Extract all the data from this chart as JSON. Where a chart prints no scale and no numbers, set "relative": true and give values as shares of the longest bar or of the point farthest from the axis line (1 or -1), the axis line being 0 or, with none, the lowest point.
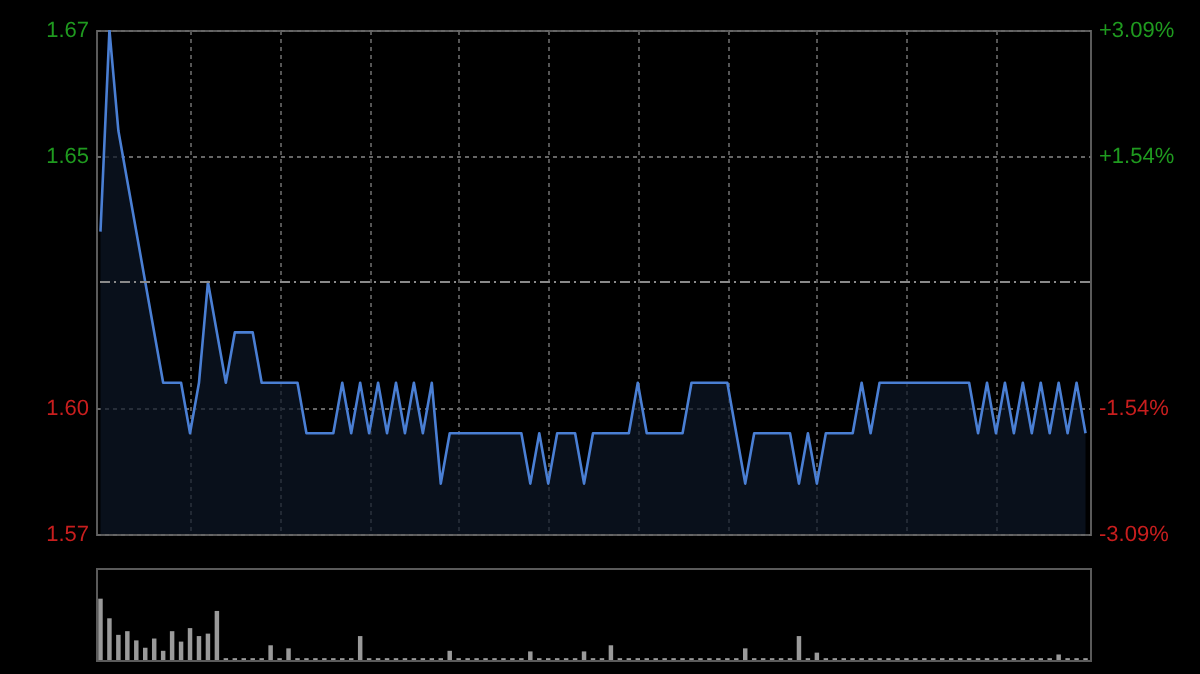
{
  "chart_data": [
    {
      "type": "area",
      "categories": [
        null,
        null,
        null,
        null,
        null,
        null,
        null,
        null,
        null,
        null,
        null,
        null,
        null,
        null,
        null,
        null,
        null,
        null,
        null,
        null,
        null,
        null,
        null,
        null,
        null,
        null,
        null,
        null,
        null,
        null,
        null,
        null,
        null,
        null,
        null,
        null,
        null,
        null,
        null,
        null,
        null,
        null,
        null,
        null,
        null,
        null,
        null,
        null,
        null,
        null,
        null,
        null,
        null,
        null,
        null,
        null,
        null,
        null,
        null,
        null,
        null,
        null,
        null,
        null,
        null,
        null,
        null,
        null,
        null,
        null,
        null,
        null,
        null,
        null,
        null,
        null,
        null,
        null,
        null,
        null,
        null,
        null,
        null,
        null,
        null,
        null,
        null,
        null,
        null,
        null,
        null,
        null,
        null,
        null,
        null,
        null,
        null,
        null,
        null,
        null,
        null,
        null,
        null,
        null,
        null,
        null,
        null,
        null,
        null,
        null,
        null
      ],
      "series": [
        {
          "color": "#4a7fd4",
          "values": [
            1.63,
            1.67,
            1.65,
            1.64,
            1.63,
            1.62,
            1.61,
            1.6,
            1.6,
            1.6,
            1.59,
            1.6,
            1.62,
            1.61,
            1.6,
            1.61,
            1.61,
            1.61,
            1.6,
            1.6,
            1.6,
            1.6,
            1.6,
            1.59,
            1.59,
            1.59,
            1.59,
            1.6,
            1.59,
            1.6,
            1.59,
            1.6,
            1.59,
            1.6,
            1.59,
            1.6,
            1.59,
            1.6,
            1.58,
            1.59,
            1.59,
            1.59,
            1.59,
            1.59,
            1.59,
            1.59,
            1.59,
            1.59,
            1.58,
            1.59,
            1.58,
            1.59,
            1.59,
            1.59,
            1.58,
            1.59,
            1.59,
            1.59,
            1.59,
            1.59,
            1.6,
            1.59,
            1.59,
            1.59,
            1.59,
            1.59,
            1.6,
            1.6,
            1.6,
            1.6,
            1.6,
            1.59,
            1.58,
            1.59,
            1.59,
            1.59,
            1.59,
            1.59,
            1.58,
            1.59,
            1.58,
            1.59,
            1.59,
            1.59,
            1.59,
            1.6,
            1.59,
            1.6,
            1.6,
            1.6,
            1.6,
            1.6,
            1.6,
            1.6,
            1.6,
            1.6,
            1.6,
            1.6,
            1.59,
            1.6,
            1.59,
            1.6,
            1.59,
            1.6,
            1.59,
            1.6,
            1.59,
            1.6,
            1.59,
            1.6,
            1.59
          ]
        }
      ],
      "ylim": [
        1.57,
        1.67
      ],
      "yticks": [
        1.67,
        {
          "value": 1.645,
          "label": "1.65"
        },
        {
          "value": 1.595,
          "label": "1.60"
        },
        1.57
      ],
      "y2lim": [
        -3.09,
        3.09
      ],
      "y2ticks": [
        {
          "value": 3.09,
          "label": "+3.09%"
        },
        {
          "value": 1.54,
          "label": "+1.54%"
        },
        {
          "value": -1.54,
          "label": "-1.54%"
        },
        {
          "value": -3.09,
          "label": "-3.09%"
        }
      ],
      "ref_lines": [
        {
          "axis": "y",
          "value": 1.62
        }
      ],
      "grid": true
    },
    {
      "type": "bar",
      "relative": true,
      "color": "#9a9a9a",
      "categories": [
        null,
        null,
        null,
        null,
        null,
        null,
        null,
        null,
        null,
        null,
        null,
        null,
        null,
        null,
        null,
        null,
        null,
        null,
        null,
        null,
        null,
        null,
        null,
        null,
        null,
        null,
        null,
        null,
        null,
        null,
        null,
        null,
        null,
        null,
        null,
        null,
        null,
        null,
        null,
        null,
        null,
        null,
        null,
        null,
        null,
        null,
        null,
        null,
        null,
        null,
        null,
        null,
        null,
        null,
        null,
        null,
        null,
        null,
        null,
        null,
        null,
        null,
        null,
        null,
        null,
        null,
        null,
        null,
        null,
        null,
        null,
        null,
        null,
        null,
        null,
        null,
        null,
        null,
        null,
        null,
        null,
        null,
        null,
        null,
        null,
        null,
        null,
        null,
        null,
        null,
        null,
        null,
        null,
        null,
        null,
        null,
        null,
        null,
        null,
        null,
        null,
        null,
        null,
        null,
        null,
        null,
        null,
        null,
        null,
        null,
        null
      ],
      "values": [
        1,
        0.68,
        0.41,
        0.47,
        0.32,
        0.2,
        0.35,
        0.15,
        0.47,
        0.3,
        0.52,
        0.39,
        0.43,
        0.8,
        0.03,
        0.03,
        0.03,
        0.03,
        0.03,
        0.24,
        0.03,
        0.19,
        0.03,
        0.03,
        0.03,
        0.03,
        0.03,
        0.03,
        0.03,
        0.39,
        0.03,
        0.03,
        0.03,
        0.03,
        0.03,
        0.03,
        0.03,
        0.03,
        0.03,
        0.15,
        0.03,
        0.03,
        0.03,
        0.03,
        0.03,
        0.03,
        0.03,
        0.03,
        0.14,
        0.03,
        0.03,
        0.03,
        0.03,
        0.03,
        0.14,
        0.03,
        0.03,
        0.24,
        0.03,
        0.03,
        0.03,
        0.03,
        0.03,
        0.03,
        0.03,
        0.03,
        0.03,
        0.03,
        0.03,
        0.03,
        0.03,
        0.03,
        0.19,
        0.03,
        0.03,
        0.03,
        0.03,
        0.03,
        0.39,
        0.03,
        0.12,
        0.03,
        0.03,
        0.03,
        0.03,
        0.03,
        0.03,
        0.03,
        0.03,
        0.03,
        0.03,
        0.03,
        0.03,
        0.03,
        0.03,
        0.03,
        0.03,
        0.03,
        0.03,
        0.03,
        0.03,
        0.03,
        0.03,
        0.03,
        0.03,
        0.03,
        0.03,
        0.09,
        0.03,
        0.03,
        0.03
      ]
    }
  ]
}
